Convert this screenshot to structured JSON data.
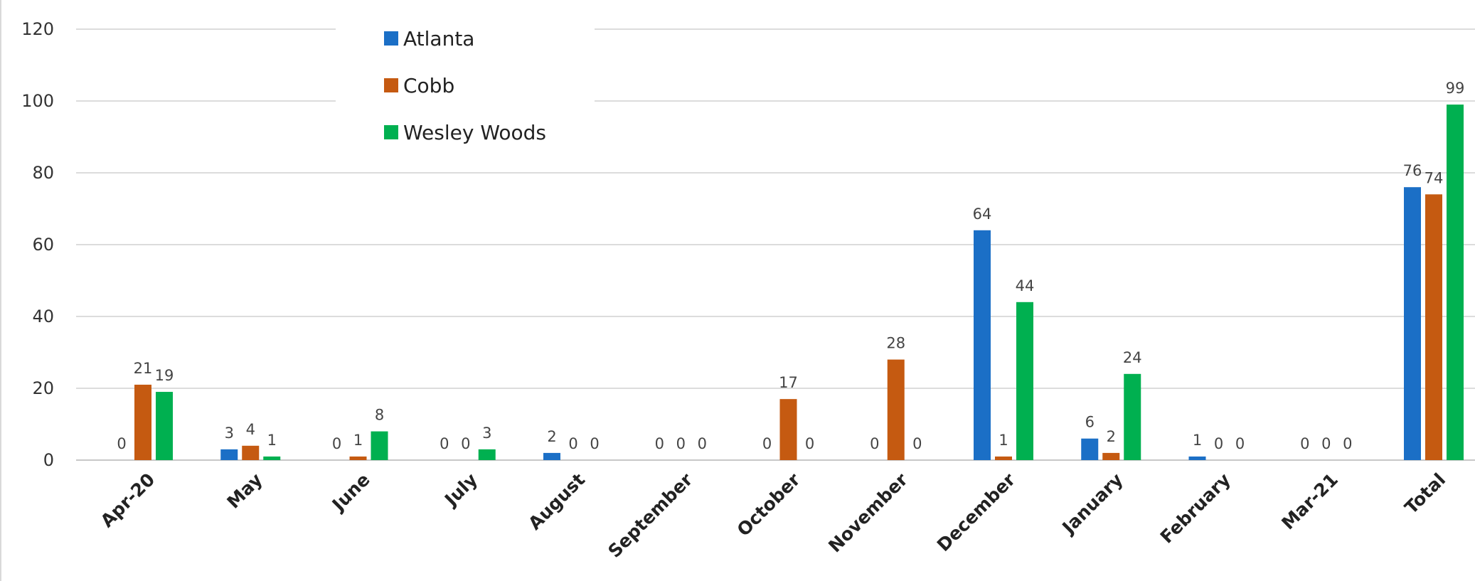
{
  "chart_data": {
    "type": "bar",
    "categories": [
      "Apr-20",
      "May",
      "June",
      "July",
      "August",
      "September",
      "October",
      "November",
      "December",
      "January",
      "February",
      "Mar-21",
      "Total"
    ],
    "series": [
      {
        "name": "Atlanta",
        "color": "#1b6fc6",
        "values": [
          0,
          3,
          0,
          0,
          2,
          0,
          0,
          0,
          64,
          6,
          1,
          0,
          76
        ]
      },
      {
        "name": "Cobb",
        "color": "#c55a11",
        "values": [
          21,
          4,
          1,
          0,
          0,
          0,
          17,
          28,
          1,
          2,
          0,
          0,
          74
        ]
      },
      {
        "name": "Wesley Woods",
        "color": "#00b050",
        "values": [
          19,
          1,
          8,
          3,
          0,
          0,
          0,
          0,
          44,
          24,
          0,
          0,
          99
        ]
      }
    ],
    "ylim": [
      0,
      120
    ],
    "yticks": [
      0,
      20,
      40,
      60,
      80,
      100,
      120
    ],
    "grid": true,
    "legend_position": "top-center",
    "data_labels": true
  }
}
